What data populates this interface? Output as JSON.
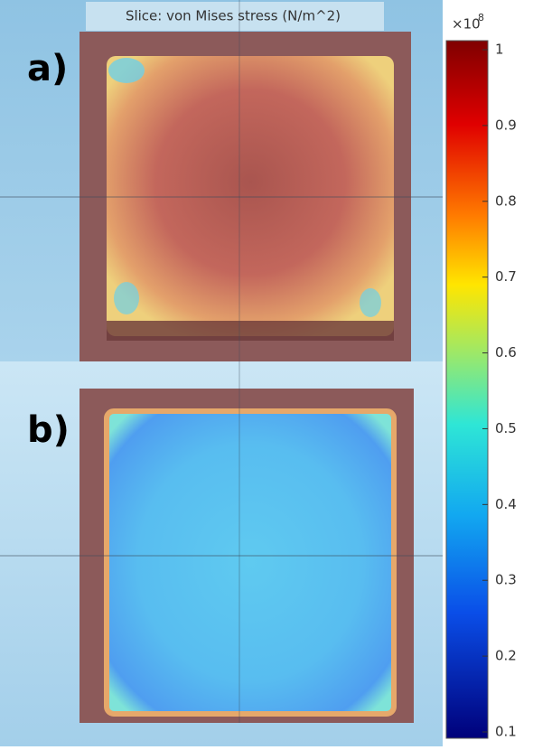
{
  "title": "Slice: von Mises stress (N/m^2)",
  "panels": [
    {
      "label": "a)"
    },
    {
      "label": "b)"
    }
  ],
  "colorbar": {
    "multiplier": "×10",
    "exponent": "8",
    "range": [
      0.1,
      1
    ],
    "ticks": [
      1,
      0.9,
      0.8,
      0.7,
      0.6,
      0.5,
      0.4,
      0.3,
      0.2,
      0.1
    ]
  }
}
